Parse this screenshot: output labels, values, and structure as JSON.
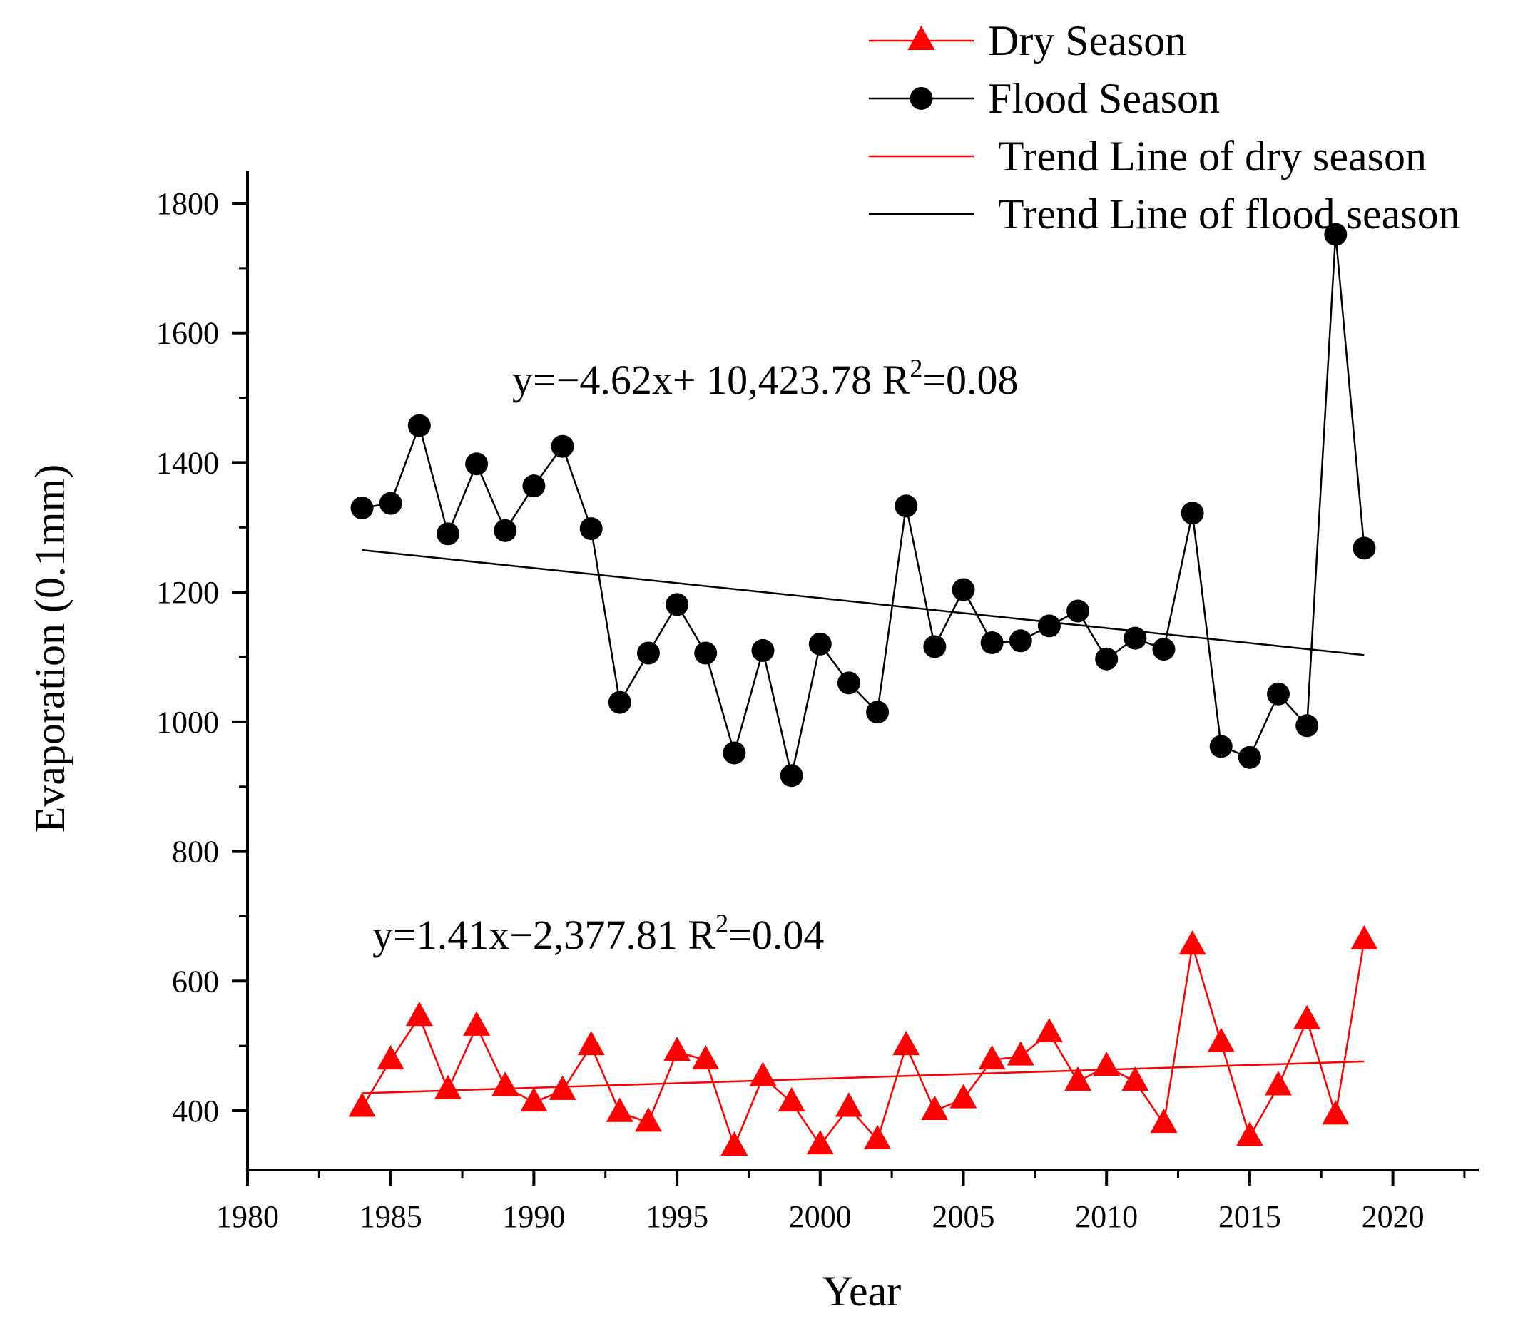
{
  "chart_data": {
    "type": "line",
    "xlabel": "Year",
    "ylabel": "Evaporation (0.1mm)",
    "xlim": [
      1980,
      2023
    ],
    "ylim": [
      300,
      1900
    ],
    "x_ticks": [
      1980,
      1985,
      1990,
      1995,
      2000,
      2005,
      2010,
      2015,
      2020
    ],
    "y_ticks": [
      400,
      600,
      800,
      1000,
      1200,
      1400,
      1600,
      1800
    ],
    "grid": false,
    "legend_position": "top-right",
    "x": [
      1984,
      1985,
      1986,
      1987,
      1988,
      1989,
      1990,
      1991,
      1992,
      1993,
      1994,
      1995,
      1996,
      1997,
      1998,
      1999,
      2000,
      2001,
      2002,
      2003,
      2004,
      2005,
      2006,
      2007,
      2008,
      2009,
      2010,
      2011,
      2012,
      2013,
      2014,
      2015,
      2016,
      2017,
      2018,
      2019
    ],
    "series": [
      {
        "name": "Dry Season",
        "color": "#ff0000",
        "marker": "triangle",
        "values": [
          405,
          478,
          545,
          432,
          530,
          437,
          413,
          431,
          500,
          397,
          382,
          491,
          478,
          345,
          452,
          413,
          347,
          405,
          355,
          500,
          400,
          418,
          478,
          484,
          520,
          445,
          468,
          445,
          380,
          655,
          505,
          360,
          438,
          540,
          393,
          663
        ]
      },
      {
        "name": "Flood Season",
        "color": "#000000",
        "marker": "circle",
        "values": [
          1330,
          1337,
          1457,
          1290,
          1398,
          1295,
          1364,
          1425,
          1298,
          1030,
          1106,
          1181,
          1106,
          952,
          1110,
          917,
          1120,
          1060,
          1015,
          1333,
          1116,
          1204,
          1122,
          1125,
          1148,
          1171,
          1097,
          1129,
          1112,
          1322,
          962,
          945,
          1043,
          994,
          1752,
          1268
        ]
      }
    ],
    "trend_lines": [
      {
        "name": "Trend Line of dry season",
        "color": "#ff0000",
        "x_range": [
          1984,
          2019
        ],
        "y_values": [
          427,
          476
        ],
        "equation_text": "y=1.41x−2,377.81  R",
        "r2_sup": "2",
        "r2_value": "=0.04"
      },
      {
        "name": "Trend Line of flood season",
        "color": "#000000",
        "x_range": [
          1984,
          2019
        ],
        "y_values": [
          1265,
          1103
        ],
        "equation_text": "y=−4.62x+ 10,423.78  R",
        "r2_sup": "2",
        "r2_value": "=0.08"
      }
    ],
    "legend": [
      {
        "label": "Dry Season",
        "kind": "line-triangle",
        "color": "#ff0000"
      },
      {
        "label": "Flood Season",
        "kind": "line-circle",
        "color": "#000000"
      },
      {
        "label": " Trend Line of dry season",
        "kind": "line",
        "color": "#ff0000"
      },
      {
        "label": " Trend Line of flood season",
        "kind": "line",
        "color": "#000000"
      }
    ]
  }
}
